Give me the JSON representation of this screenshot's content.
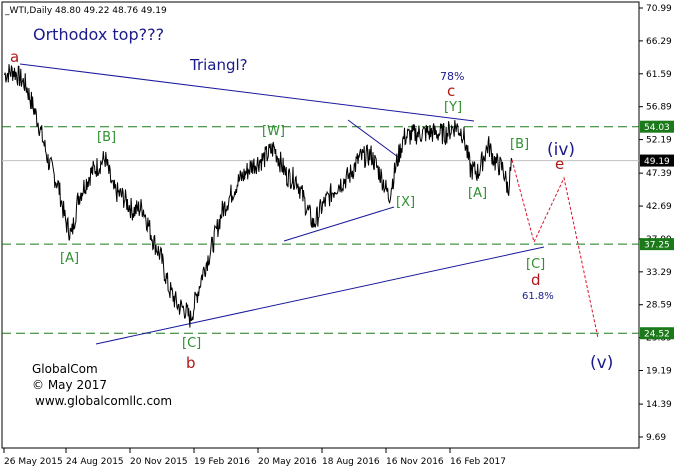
{
  "chart_data": {
    "type": "line",
    "header": "_WTI,Daily  48.80 49.22 48.76 49.19",
    "price_ticks": [
      "70.99",
      "66.29",
      "61.59",
      "56.89",
      "52.19",
      "47.39",
      "42.69",
      "37.99",
      "33.29",
      "28.59",
      "23.89",
      "19.19",
      "14.39",
      "9.69"
    ],
    "highlighted_levels": [
      {
        "label": "54.03",
        "value": 54.03
      },
      {
        "label": "49.19",
        "value": 49.19
      },
      {
        "label": "37.25",
        "value": 37.25
      },
      {
        "label": "24.52",
        "value": 24.52
      }
    ],
    "date_ticks": [
      "26 May 2015",
      "24 Aug 2015",
      "20 Nov 2015",
      "19 Feb 2016",
      "20 May 2016",
      "18 Aug 2016",
      "16 Nov 2016",
      "16 Feb 2017"
    ],
    "price_anchors": [
      [
        0,
        61.5
      ],
      [
        10,
        62.0
      ],
      [
        22,
        60.0
      ],
      [
        35,
        54.5
      ],
      [
        45,
        49.0
      ],
      [
        55,
        45.5
      ],
      [
        62,
        40.5
      ],
      [
        68,
        38.5
      ],
      [
        75,
        44.0
      ],
      [
        88,
        47.5
      ],
      [
        102,
        49.5
      ],
      [
        110,
        45.0
      ],
      [
        120,
        44.0
      ],
      [
        130,
        42.0
      ],
      [
        140,
        42.5
      ],
      [
        150,
        38.0
      ],
      [
        158,
        35.5
      ],
      [
        166,
        31.0
      ],
      [
        175,
        28.5
      ],
      [
        182,
        28.0
      ],
      [
        188,
        26.5
      ],
      [
        200,
        33.0
      ],
      [
        210,
        37.0
      ],
      [
        220,
        42.0
      ],
      [
        235,
        46.0
      ],
      [
        250,
        48.5
      ],
      [
        262,
        49.5
      ],
      [
        272,
        51.0
      ],
      [
        285,
        47.0
      ],
      [
        295,
        46.5
      ],
      [
        305,
        42.5
      ],
      [
        312,
        40.0
      ],
      [
        320,
        42.5
      ],
      [
        335,
        45.5
      ],
      [
        348,
        47.0
      ],
      [
        358,
        49.5
      ],
      [
        370,
        50.0
      ],
      [
        380,
        47.0
      ],
      [
        388,
        44.0
      ],
      [
        396,
        49.0
      ],
      [
        403,
        52.5
      ],
      [
        415,
        53.0
      ],
      [
        430,
        53.2
      ],
      [
        445,
        53.0
      ],
      [
        455,
        54.2
      ],
      [
        463,
        53.0
      ],
      [
        470,
        48.0
      ],
      [
        478,
        47.5
      ],
      [
        488,
        51.5
      ],
      [
        495,
        49.0
      ],
      [
        503,
        48.0
      ],
      [
        508,
        45.0
      ],
      [
        512,
        49.2
      ]
    ],
    "date_range_x": [
      0,
      512
    ],
    "ylim": [
      9.69,
      70.99
    ]
  },
  "annotations": {
    "wave_a": "a",
    "orthodox_top": "Orthodox top???",
    "triangl": "Triangl?",
    "pct_78": "78%",
    "wave_c": "c",
    "wave_Y": "[Y]",
    "wave_W": "[W]",
    "wave_B_left": "[B]",
    "wave_B_right": "[B]",
    "wave_A_left": "[A]",
    "wave_A_right": "[A]",
    "wave_X": "[X]",
    "wave_C_bottom": "[C]",
    "wave_b": "b",
    "wave_iv": "(iv)",
    "wave_e": "e",
    "wave_C_right": "[C]",
    "wave_d": "d",
    "pct_618": "61.8%",
    "wave_v": "(v)"
  },
  "watermark": {
    "company": "GlobalCom",
    "copyright": "© May 2017",
    "site": "www.globalcomllc.com"
  },
  "colors": {
    "price": "#000000",
    "trendline": "#1a1a9c",
    "level_line": "#1a7a1a",
    "level_tag": "#1a7a1a",
    "wave_green": "#2f8f2f",
    "wave_red": "#b01818",
    "wave_blue": "#1a1a8c",
    "forecast": "#e0102a"
  }
}
